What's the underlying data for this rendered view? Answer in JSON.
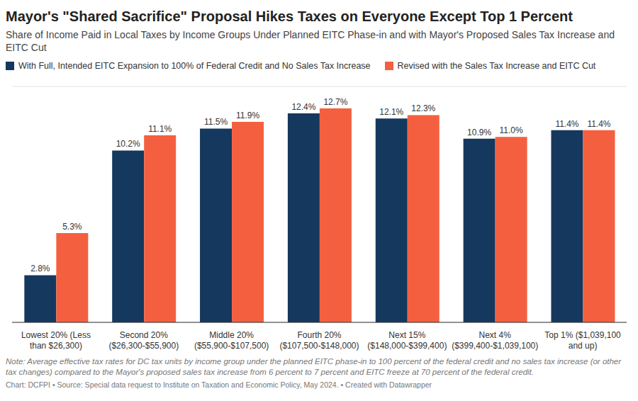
{
  "chart_data": {
    "type": "bar",
    "title": "Mayor's \"Shared Sacrifice\" Proposal Hikes Taxes on Everyone Except Top 1 Percent",
    "subtitle": "Share of Income Paid in Local Taxes by Income Groups Under Planned EITC Phase-in and with Mayor's Proposed Sales Tax Increase and EITC Cut",
    "categories": [
      "Lowest 20% (Less than $26,300)",
      "Second 20% ($26,300-$55,900)",
      "Middle 20% ($55,900-$107,500)",
      "Fourth 20% ($107,500-$148,000)",
      "Next 15% ($148,000-$399,400)",
      "Next 4% ($399,400-$1,039,100)",
      "Top 1% ($1,039,100 and up)"
    ],
    "series": [
      {
        "name": "With Full, Intended EITC Expansion to 100% of Federal Credit and No Sales Tax Increase",
        "color": "#15385e",
        "values": [
          2.8,
          10.2,
          11.5,
          12.4,
          12.1,
          10.9,
          11.4
        ],
        "value_labels": [
          "2.8%",
          "10.2%",
          "11.5%",
          "12.4%",
          "12.1%",
          "10.9%",
          "11.4%"
        ]
      },
      {
        "name": "Revised with the Sales Tax Increase and EITC Cut",
        "color": "#f4603f",
        "values": [
          5.3,
          11.1,
          11.9,
          12.7,
          12.3,
          11.0,
          11.4
        ],
        "value_labels": [
          "5.3%",
          "11.1%",
          "11.9%",
          "12.7%",
          "12.3%",
          "11.0%",
          "11.4%"
        ]
      }
    ],
    "ylim": [
      0,
      14
    ],
    "yticks": [
      0,
      2,
      4,
      6,
      8,
      10,
      12,
      14
    ],
    "grid": true,
    "data_labels": true,
    "tick_labels": "x",
    "note": "Note: Average effective tax rates for DC tax units by income group under the planned EITC phase-in to 100 percent of the federal credit and no sales tax increase (or other tax changes) compared to the Mayor's proposed sales tax increase from 6 percent to 7 percent and EITC freeze at 70 percent of the federal credit.",
    "source": "Chart: DCFPI • Source: Special data request to Institute on Taxation and Economic Policy, May 2024. • Created with Datawrapper"
  }
}
